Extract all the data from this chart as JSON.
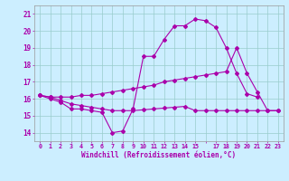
{
  "xlabel": "Windchill (Refroidissement éolien,°C)",
  "background_color": "#cceeff",
  "line_color": "#aa00aa",
  "grid_color": "#99cccc",
  "line1_x": [
    0,
    1,
    2,
    3,
    4,
    5,
    6,
    7,
    8,
    9,
    10,
    11,
    12,
    13,
    14,
    15,
    16,
    17,
    18,
    19,
    20,
    21
  ],
  "line1_y": [
    16.2,
    16.0,
    15.8,
    15.4,
    15.4,
    15.3,
    15.2,
    14.0,
    14.1,
    15.4,
    18.5,
    18.5,
    19.5,
    20.3,
    20.3,
    20.7,
    20.6,
    20.2,
    19.0,
    17.5,
    16.3,
    16.1
  ],
  "line2_x": [
    0,
    1,
    2,
    3,
    4,
    5,
    6,
    7,
    8,
    9,
    10,
    11,
    12,
    13,
    14,
    15,
    16,
    17,
    18,
    19,
    20,
    21,
    22,
    23
  ],
  "line2_y": [
    16.2,
    16.1,
    16.1,
    16.1,
    16.2,
    16.2,
    16.3,
    16.4,
    16.5,
    16.6,
    16.7,
    16.8,
    17.0,
    17.1,
    17.2,
    17.3,
    17.4,
    17.5,
    17.6,
    19.0,
    17.5,
    16.4,
    15.3,
    15.3
  ],
  "line3_x": [
    0,
    1,
    2,
    3,
    4,
    5,
    6,
    7,
    8,
    9,
    10,
    11,
    12,
    13,
    14,
    15,
    16,
    17,
    18,
    19,
    20,
    21,
    22,
    23
  ],
  "line3_y": [
    16.2,
    16.1,
    15.9,
    15.7,
    15.6,
    15.5,
    15.4,
    15.3,
    15.3,
    15.3,
    15.35,
    15.4,
    15.45,
    15.5,
    15.55,
    15.3,
    15.3,
    15.3,
    15.3,
    15.3,
    15.3,
    15.3,
    15.3,
    15.3
  ],
  "ylim": [
    13.5,
    21.5
  ],
  "xlim": [
    -0.5,
    23.5
  ],
  "yticks": [
    14,
    15,
    16,
    17,
    18,
    19,
    20,
    21
  ]
}
